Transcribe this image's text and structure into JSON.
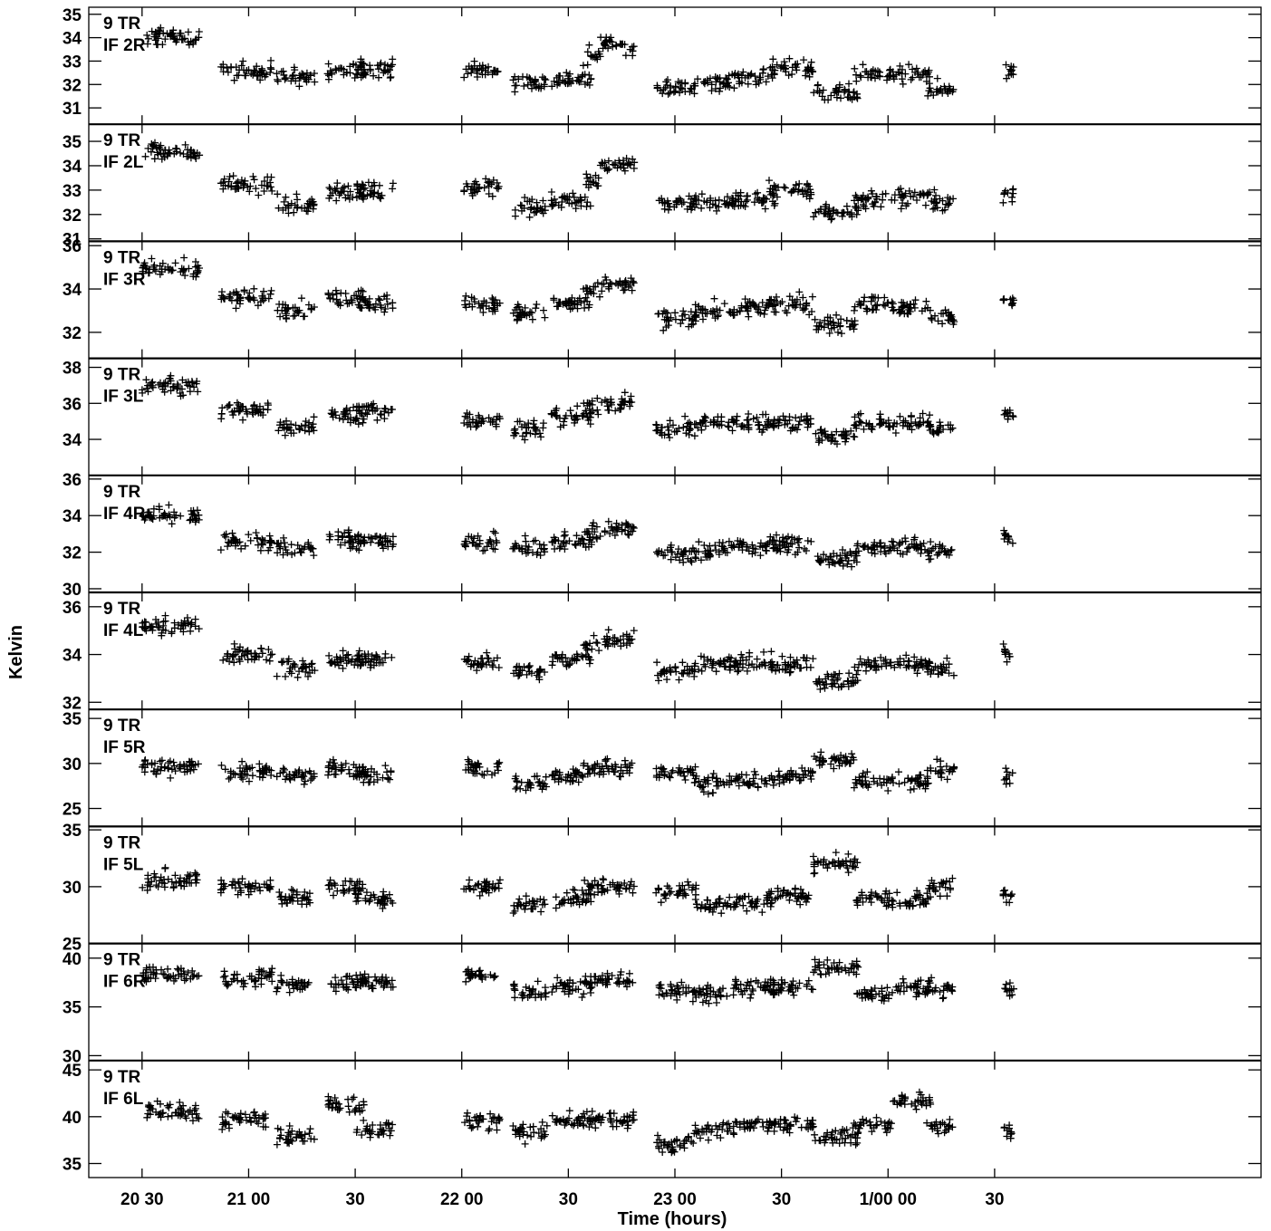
{
  "chart_data": {
    "type": "scatter",
    "xlabel": "Time (hours)",
    "ylabel": "Kelvin",
    "x_unit": "hours",
    "xlim": [
      20.25,
      25.75
    ],
    "x_ticks": [
      {
        "value": 20.5,
        "label": "20 30"
      },
      {
        "value": 21.0,
        "label": "21 00"
      },
      {
        "value": 21.5,
        "label": "30"
      },
      {
        "value": 22.0,
        "label": "22 00"
      },
      {
        "value": 22.5,
        "label": "30"
      },
      {
        "value": 23.0,
        "label": "23 00"
      },
      {
        "value": 23.5,
        "label": "30"
      },
      {
        "value": 24.0,
        "label": "1/00 00"
      },
      {
        "value": 24.5,
        "label": "30"
      }
    ],
    "scan_windows_hours": [
      [
        20.5,
        20.77
      ],
      [
        20.87,
        21.11
      ],
      [
        21.13,
        21.31
      ],
      [
        21.37,
        21.55
      ],
      [
        21.5,
        21.68
      ],
      [
        22.01,
        22.18
      ],
      [
        22.24,
        22.4
      ],
      [
        22.42,
        22.61
      ],
      [
        22.57,
        22.65
      ],
      [
        22.65,
        22.81
      ],
      [
        22.91,
        23.1
      ],
      [
        23.09,
        23.28
      ],
      [
        23.28,
        23.47
      ],
      [
        23.44,
        23.65
      ],
      [
        23.65,
        23.86
      ],
      [
        23.84,
        24.02
      ],
      [
        24.02,
        24.2
      ],
      [
        24.18,
        24.31
      ],
      [
        24.54,
        24.59
      ]
    ],
    "panels": [
      {
        "antenna": "9 TR",
        "if": "IF 2R",
        "ylim": [
          30.3,
          35.3
        ],
        "yticks": [
          31,
          32,
          33,
          34,
          35
        ],
        "levels": [
          34.0,
          32.6,
          32.3,
          32.6,
          32.7,
          32.6,
          32.1,
          32.2,
          33.2,
          33.7,
          31.9,
          32.1,
          32.3,
          32.7,
          31.6,
          32.4,
          32.4,
          31.8,
          32.6
        ]
      },
      {
        "antenna": "9 TR",
        "if": "IF 2L",
        "ylim": [
          30.9,
          35.7
        ],
        "yticks": [
          31,
          32,
          33,
          34,
          35
        ],
        "levels": [
          34.6,
          33.2,
          32.4,
          32.9,
          33.0,
          33.1,
          32.3,
          32.6,
          33.4,
          34.0,
          32.5,
          32.5,
          32.6,
          33.0,
          32.1,
          32.6,
          32.7,
          32.5,
          32.9
        ]
      },
      {
        "antenna": "9 TR",
        "if": "IF 3R",
        "ylim": [
          30.8,
          36.2
        ],
        "yticks": [
          32,
          34,
          36
        ],
        "levels": [
          34.9,
          33.6,
          33.1,
          33.6,
          33.4,
          33.3,
          32.9,
          33.3,
          33.8,
          34.2,
          32.6,
          33.0,
          33.1,
          33.3,
          32.4,
          33.3,
          33.1,
          32.7,
          33.5
        ]
      },
      {
        "antenna": "9 TR",
        "if": "IF 3L",
        "ylim": [
          32.0,
          38.5
        ],
        "yticks": [
          34,
          36,
          38
        ],
        "levels": [
          37.0,
          35.6,
          34.7,
          35.3,
          35.6,
          35.1,
          34.6,
          35.2,
          35.8,
          36.0,
          34.6,
          34.9,
          34.9,
          35.0,
          34.2,
          34.9,
          34.9,
          34.6,
          35.4
        ]
      },
      {
        "antenna": "9 TR",
        "if": "IF 4R",
        "ylim": [
          29.8,
          36.2
        ],
        "yticks": [
          30,
          32,
          34,
          36
        ],
        "levels": [
          34.0,
          32.6,
          32.2,
          32.7,
          32.6,
          32.5,
          32.2,
          32.6,
          33.1,
          33.3,
          32.0,
          32.1,
          32.3,
          32.5,
          31.6,
          32.3,
          32.3,
          32.0,
          32.8
        ]
      },
      {
        "antenna": "9 TR",
        "if": "IF 4L",
        "ylim": [
          31.7,
          36.6
        ],
        "yticks": [
          32,
          34,
          36
        ],
        "levels": [
          35.2,
          34.0,
          33.4,
          33.8,
          33.8,
          33.7,
          33.3,
          33.8,
          34.4,
          34.6,
          33.3,
          33.6,
          33.7,
          33.6,
          32.9,
          33.6,
          33.6,
          33.3,
          34.0
        ]
      },
      {
        "antenna": "9 TR",
        "if": "IF 5R",
        "ylim": [
          23.0,
          36.0
        ],
        "yticks": [
          25,
          30,
          35
        ],
        "levels": [
          29.5,
          29.2,
          28.6,
          29.3,
          28.8,
          29.5,
          27.8,
          28.5,
          29.5,
          29.5,
          29.0,
          27.8,
          28.0,
          28.6,
          30.5,
          28.1,
          28.0,
          29.3,
          28.3
        ]
      },
      {
        "antenna": "9 TR",
        "if": "IF 5L",
        "ylim": [
          25.0,
          35.3
        ],
        "yticks": [
          25,
          30,
          35
        ],
        "levels": [
          30.6,
          30.0,
          29.0,
          30.0,
          29.0,
          30.0,
          28.4,
          29.0,
          30.0,
          30.0,
          29.6,
          28.4,
          28.6,
          29.2,
          32.0,
          28.9,
          28.8,
          30.0,
          29.0
        ]
      },
      {
        "antenna": "9 TR",
        "if": "IF 6R",
        "ylim": [
          29.5,
          41.5
        ],
        "yticks": [
          30,
          35,
          40
        ],
        "levels": [
          38.3,
          38.0,
          37.3,
          37.7,
          37.5,
          38.2,
          36.6,
          37.0,
          37.7,
          37.8,
          36.6,
          36.3,
          37.0,
          37.0,
          39.0,
          36.4,
          37.0,
          37.0,
          36.8
        ]
      },
      {
        "antenna": "9 TR",
        "if": "IF 6L",
        "ylim": [
          33.5,
          46.0
        ],
        "yticks": [
          35,
          40,
          45
        ],
        "levels": [
          40.6,
          39.6,
          38.1,
          41.3,
          38.7,
          39.6,
          38.4,
          39.4,
          40.0,
          39.6,
          37.0,
          38.5,
          39.1,
          39.2,
          38.0,
          39.1,
          41.7,
          38.9,
          38.3
        ]
      }
    ]
  }
}
